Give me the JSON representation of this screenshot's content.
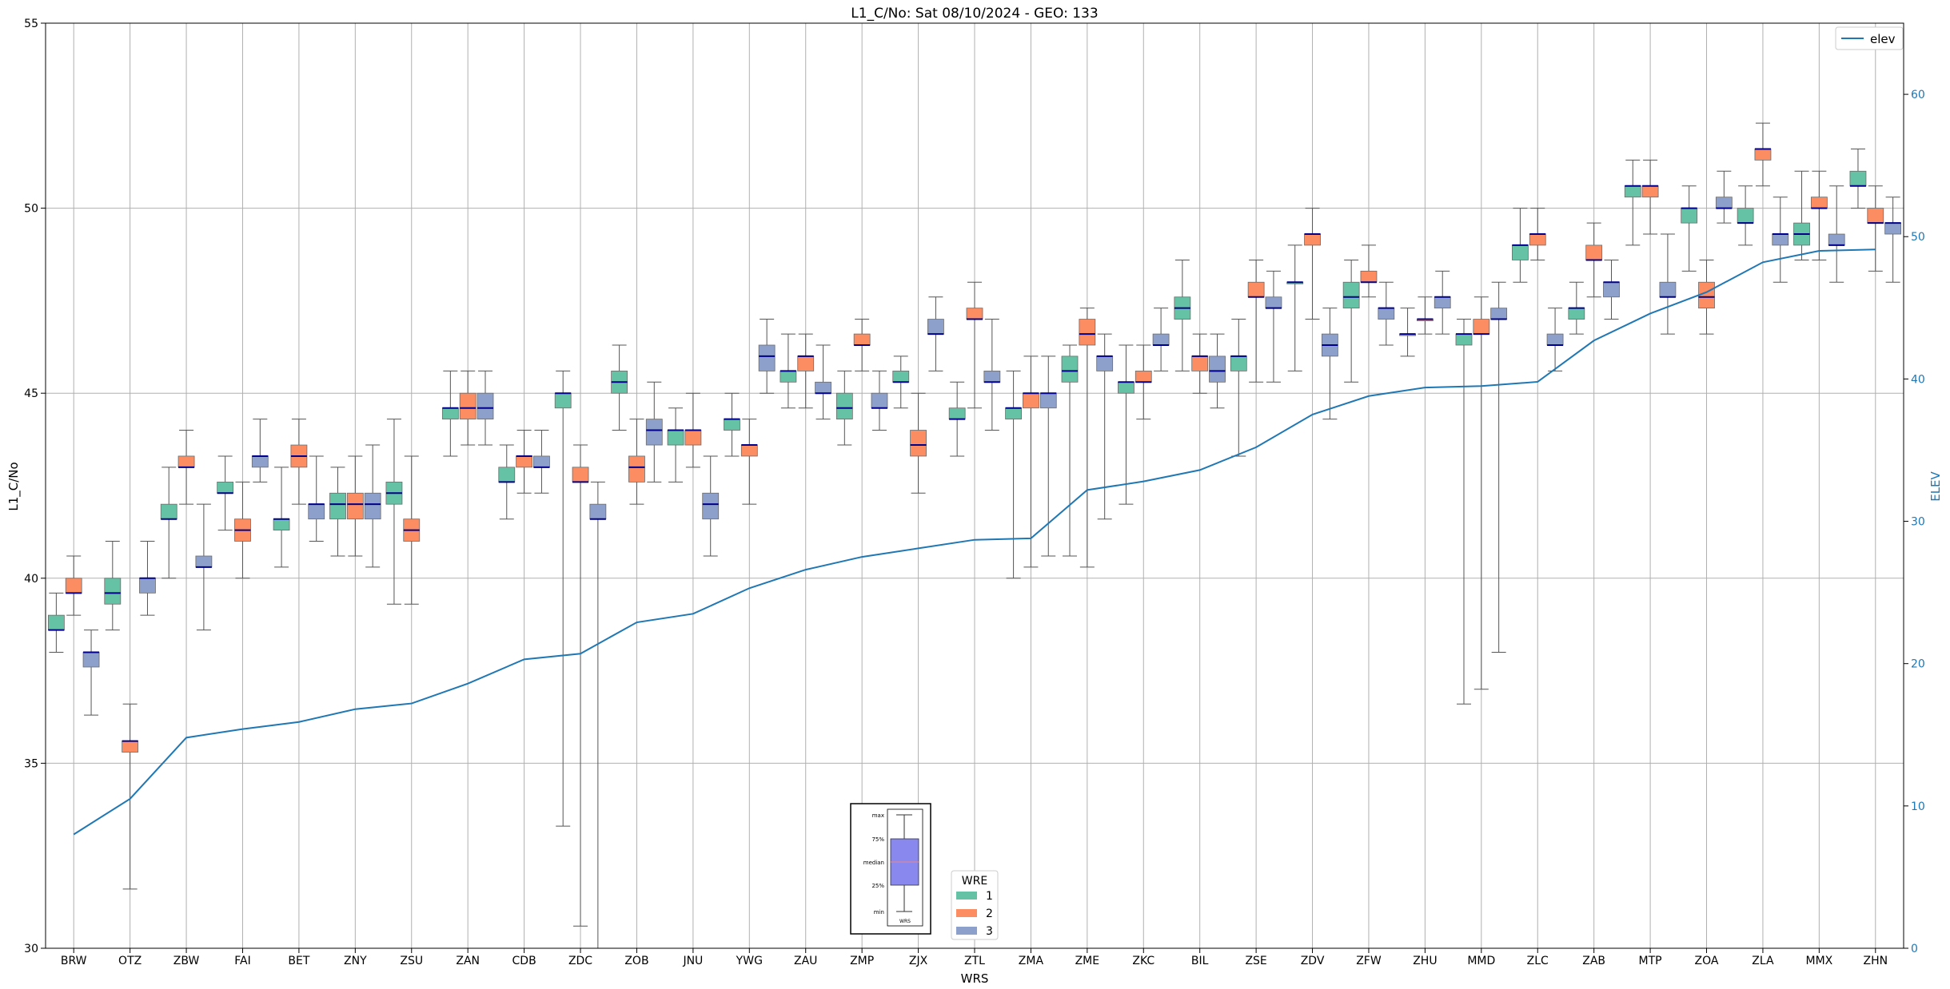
{
  "colors": {
    "wre1": "#66c2a5",
    "wre2": "#fc8d62",
    "wre3": "#8da0cb",
    "median": "#00008b",
    "elev": "#1f77b4",
    "whisker": "#555555"
  },
  "chart_data": {
    "type": "box",
    "title": "L1_C/No: Sat 08/10/2024 - GEO: 133",
    "xlabel": "WRS",
    "ylabel": "L1_C/No",
    "y2label": "ELEV",
    "ylim": [
      30,
      55
    ],
    "y2lim": [
      0,
      65
    ],
    "yticks": [
      30,
      35,
      40,
      45,
      50,
      55
    ],
    "y2ticks": [
      0,
      10,
      20,
      30,
      40,
      50,
      60
    ],
    "grid": true,
    "categories": [
      "BRW",
      "OTZ",
      "ZBW",
      "FAI",
      "BET",
      "ZNY",
      "ZSU",
      "ZAN",
      "CDB",
      "ZDC",
      "ZOB",
      "JNU",
      "YWG",
      "ZAU",
      "ZMP",
      "ZJX",
      "ZTL",
      "ZMA",
      "ZME",
      "ZKC",
      "BIL",
      "ZSE",
      "ZDV",
      "ZFW",
      "ZHU",
      "MMD",
      "ZLC",
      "ZAB",
      "MTP",
      "ZOA",
      "ZLA",
      "MMX",
      "ZHN"
    ],
    "legend_line": {
      "label": "elev",
      "position": "top-right"
    },
    "legend_boxes": {
      "title": "WRE",
      "position": "bottom-center",
      "entries": [
        "1",
        "2",
        "3"
      ]
    },
    "box_key": {
      "labels": [
        "max",
        "75%",
        "median",
        "25%",
        "min"
      ],
      "xlabel": "WRS"
    },
    "elev": [
      8,
      10.5,
      14.8,
      15.4,
      15.9,
      16.8,
      17.2,
      18.6,
      20.3,
      20.7,
      22.9,
      23.5,
      25.3,
      26.6,
      27.5,
      28.1,
      28.7,
      28.8,
      32.2,
      32.8,
      33.6,
      35.2,
      37.5,
      38.8,
      39.4,
      39.5,
      39.8,
      42.7,
      44.6,
      46.1,
      48.2,
      49.0,
      49.1
    ],
    "series": [
      {
        "name": "1",
        "boxes": [
          {
            "min": 38,
            "q1": 38.6,
            "med": 38.6,
            "q3": 39,
            "max": 39.6
          },
          {
            "min": 38.6,
            "q1": 39.3,
            "med": 39.6,
            "q3": 40,
            "max": 41
          },
          {
            "min": 40,
            "q1": 41.6,
            "med": 41.6,
            "q3": 42,
            "max": 43
          },
          {
            "min": 41.3,
            "q1": 42.3,
            "med": 42.3,
            "q3": 42.6,
            "max": 43.3
          },
          {
            "min": 40.3,
            "q1": 41.3,
            "med": 41.6,
            "q3": 41.6,
            "max": 43
          },
          {
            "min": 40.6,
            "q1": 41.6,
            "med": 42,
            "q3": 42.3,
            "max": 43
          },
          {
            "min": 39.3,
            "q1": 42,
            "med": 42.3,
            "q3": 42.6,
            "max": 44.3
          },
          {
            "min": 43.3,
            "q1": 44.3,
            "med": 44.6,
            "q3": 44.6,
            "max": 45.6
          },
          {
            "min": 41.6,
            "q1": 42.6,
            "med": 42.6,
            "q3": 43,
            "max": 43.6
          },
          {
            "min": 33.3,
            "q1": 44.6,
            "med": 45,
            "q3": 45,
            "max": 45.6
          },
          {
            "min": 44,
            "q1": 45,
            "med": 45.3,
            "q3": 45.6,
            "max": 46.3
          },
          {
            "min": 42.6,
            "q1": 43.6,
            "med": 44,
            "q3": 44,
            "max": 44.6
          },
          {
            "min": 43.3,
            "q1": 44,
            "med": 44.3,
            "q3": 44.3,
            "max": 45
          },
          {
            "min": 44.6,
            "q1": 45.3,
            "med": 45.6,
            "q3": 45.6,
            "max": 46.6
          },
          {
            "min": 43.6,
            "q1": 44.3,
            "med": 44.6,
            "q3": 45,
            "max": 45.6
          },
          {
            "min": 44.6,
            "q1": 45.3,
            "med": 45.3,
            "q3": 45.6,
            "max": 46
          },
          {
            "min": 43.3,
            "q1": 44.3,
            "med": 44.3,
            "q3": 44.6,
            "max": 45.3
          },
          {
            "min": 40,
            "q1": 44.3,
            "med": 44.6,
            "q3": 44.6,
            "max": 45.6
          },
          {
            "min": 40.6,
            "q1": 45.3,
            "med": 45.6,
            "q3": 46,
            "max": 46.3
          },
          {
            "min": 42,
            "q1": 45,
            "med": 45.3,
            "q3": 45.3,
            "max": 46.3
          },
          {
            "min": 45.6,
            "q1": 47,
            "med": 47.3,
            "q3": 47.6,
            "max": 48.6
          },
          {
            "min": 43.3,
            "q1": 45.6,
            "med": 46,
            "q3": 46,
            "max": 47
          },
          {
            "min": 45.6,
            "q1": 48,
            "med": 48,
            "q3": 48,
            "max": 49
          },
          {
            "min": 45.3,
            "q1": 47.3,
            "med": 47.6,
            "q3": 48,
            "max": 48.6
          },
          {
            "min": 46,
            "q1": 46.6,
            "med": 46.6,
            "q3": 46.6,
            "max": 47.3
          },
          {
            "min": 36.6,
            "q1": 46.3,
            "med": 46.6,
            "q3": 46.6,
            "max": 47
          },
          {
            "min": 48,
            "q1": 48.6,
            "med": 49,
            "q3": 49,
            "max": 50
          },
          {
            "min": 46.6,
            "q1": 47,
            "med": 47.3,
            "q3": 47.3,
            "max": 48
          },
          {
            "min": 49,
            "q1": 50.3,
            "med": 50.6,
            "q3": 50.6,
            "max": 51.3
          },
          {
            "min": 48.3,
            "q1": 49.6,
            "med": 50,
            "q3": 50,
            "max": 50.6
          },
          {
            "min": 49,
            "q1": 49.6,
            "med": 49.6,
            "q3": 50,
            "max": 50.6
          },
          {
            "min": 48.6,
            "q1": 49,
            "med": 49.3,
            "q3": 49.6,
            "max": 51
          },
          {
            "min": 50,
            "q1": 50.6,
            "med": 50.6,
            "q3": 51,
            "max": 51.6
          }
        ]
      },
      {
        "name": "2",
        "boxes": [
          {
            "min": 39,
            "q1": 39.6,
            "med": 39.6,
            "q3": 40,
            "max": 40.6
          },
          {
            "min": 31.6,
            "q1": 35.3,
            "med": 35.6,
            "q3": 35.6,
            "max": 36.6
          },
          {
            "min": 42,
            "q1": 43,
            "med": 43,
            "q3": 43.3,
            "max": 44
          },
          {
            "min": 40,
            "q1": 41,
            "med": 41.3,
            "q3": 41.6,
            "max": 42.6
          },
          {
            "min": 42,
            "q1": 43,
            "med": 43.3,
            "q3": 43.6,
            "max": 44.3
          },
          {
            "min": 40.6,
            "q1": 41.6,
            "med": 42,
            "q3": 42.3,
            "max": 43.3
          },
          {
            "min": 39.3,
            "q1": 41,
            "med": 41.3,
            "q3": 41.6,
            "max": 43.3
          },
          {
            "min": 43.6,
            "q1": 44.3,
            "med": 44.6,
            "q3": 45,
            "max": 45.6
          },
          {
            "min": 42.3,
            "q1": 43,
            "med": 43.3,
            "q3": 43.3,
            "max": 44
          },
          {
            "min": 30.6,
            "q1": 42.6,
            "med": 42.6,
            "q3": 43,
            "max": 43.6
          },
          {
            "min": 42,
            "q1": 42.6,
            "med": 43,
            "q3": 43.3,
            "max": 44.3
          },
          {
            "min": 43,
            "q1": 43.6,
            "med": 44,
            "q3": 44,
            "max": 45
          },
          {
            "min": 42,
            "q1": 43.3,
            "med": 43.6,
            "q3": 43.6,
            "max": 44.3
          },
          {
            "min": 44.6,
            "q1": 45.6,
            "med": 46,
            "q3": 46,
            "max": 46.6
          },
          {
            "min": 45.6,
            "q1": 46.3,
            "med": 46.3,
            "q3": 46.6,
            "max": 47
          },
          {
            "min": 42.3,
            "q1": 43.3,
            "med": 43.6,
            "q3": 44,
            "max": 45
          },
          {
            "min": 44.6,
            "q1": 47,
            "med": 47,
            "q3": 47.3,
            "max": 48
          },
          {
            "min": 40.3,
            "q1": 44.6,
            "med": 45,
            "q3": 45,
            "max": 46
          },
          {
            "min": 40.3,
            "q1": 46.3,
            "med": 46.6,
            "q3": 47,
            "max": 47.3
          },
          {
            "min": 44.3,
            "q1": 45.3,
            "med": 45.3,
            "q3": 45.6,
            "max": 46.3
          },
          {
            "min": 45,
            "q1": 45.6,
            "med": 46,
            "q3": 46,
            "max": 46.6
          },
          {
            "min": 45.3,
            "q1": 47.6,
            "med": 47.6,
            "q3": 48,
            "max": 48.6
          },
          {
            "min": 47,
            "q1": 49,
            "med": 49.3,
            "q3": 49.3,
            "max": 50
          },
          {
            "min": 47.6,
            "q1": 48,
            "med": 48,
            "q3": 48.3,
            "max": 49
          },
          {
            "min": 46.6,
            "q1": 47,
            "med": 47,
            "q3": 47,
            "max": 47.6
          },
          {
            "min": 37,
            "q1": 46.6,
            "med": 46.6,
            "q3": 47,
            "max": 47.6
          },
          {
            "min": 48.6,
            "q1": 49,
            "med": 49.3,
            "q3": 49.3,
            "max": 50
          },
          {
            "min": 47.6,
            "q1": 48.6,
            "med": 48.6,
            "q3": 49,
            "max": 49.6
          },
          {
            "min": 49.3,
            "q1": 50.3,
            "med": 50.6,
            "q3": 50.6,
            "max": 51.3
          },
          {
            "min": 46.6,
            "q1": 47.3,
            "med": 47.6,
            "q3": 48,
            "max": 48.6
          },
          {
            "min": 50.6,
            "q1": 51.3,
            "med": 51.6,
            "q3": 51.6,
            "max": 52.3
          },
          {
            "min": 48.6,
            "q1": 50,
            "med": 50,
            "q3": 50.3,
            "max": 51
          },
          {
            "min": 48.3,
            "q1": 49.6,
            "med": 49.6,
            "q3": 50,
            "max": 50.6
          }
        ]
      },
      {
        "name": "3",
        "boxes": [
          {
            "min": 36.3,
            "q1": 37.6,
            "med": 38,
            "q3": 38,
            "max": 38.6
          },
          {
            "min": 39,
            "q1": 39.6,
            "med": 40,
            "q3": 40,
            "max": 41
          },
          {
            "min": 38.6,
            "q1": 40.3,
            "med": 40.3,
            "q3": 40.6,
            "max": 42
          },
          {
            "min": 42.6,
            "q1": 43,
            "med": 43.3,
            "q3": 43.3,
            "max": 44.3
          },
          {
            "min": 41,
            "q1": 41.6,
            "med": 42,
            "q3": 42,
            "max": 43.3
          },
          {
            "min": 40.3,
            "q1": 41.6,
            "med": 42,
            "q3": 42.3,
            "max": 43.6
          },
          {
            "min": null
          },
          {
            "min": 43.6,
            "q1": 44.3,
            "med": 44.6,
            "q3": 45,
            "max": 45.6
          },
          {
            "min": 42.3,
            "q1": 43,
            "med": 43,
            "q3": 43.3,
            "max": 44
          },
          {
            "min": 29.6,
            "q1": 41.6,
            "med": 41.6,
            "q3": 42,
            "max": 42.6
          },
          {
            "min": 42.6,
            "q1": 43.6,
            "med": 44,
            "q3": 44.3,
            "max": 45.3
          },
          {
            "min": 40.6,
            "q1": 41.6,
            "med": 42,
            "q3": 42.3,
            "max": 43.3
          },
          {
            "min": 45,
            "q1": 45.6,
            "med": 46,
            "q3": 46.3,
            "max": 47
          },
          {
            "min": 44.3,
            "q1": 45,
            "med": 45,
            "q3": 45.3,
            "max": 46.3
          },
          {
            "min": 44,
            "q1": 44.6,
            "med": 44.6,
            "q3": 45,
            "max": 45.6
          },
          {
            "min": 45.6,
            "q1": 46.6,
            "med": 46.6,
            "q3": 47,
            "max": 47.6
          },
          {
            "min": 44,
            "q1": 45.3,
            "med": 45.3,
            "q3": 45.6,
            "max": 47
          },
          {
            "min": 40.6,
            "q1": 44.6,
            "med": 45,
            "q3": 45,
            "max": 46
          },
          {
            "min": 41.6,
            "q1": 45.6,
            "med": 46,
            "q3": 46,
            "max": 46.6
          },
          {
            "min": 45.6,
            "q1": 46.3,
            "med": 46.3,
            "q3": 46.6,
            "max": 47.3
          },
          {
            "min": 44.6,
            "q1": 45.3,
            "med": 45.6,
            "q3": 46,
            "max": 46.6
          },
          {
            "min": 45.3,
            "q1": 47.3,
            "med": 47.3,
            "q3": 47.6,
            "max": 48.3
          },
          {
            "min": 44.3,
            "q1": 46,
            "med": 46.3,
            "q3": 46.6,
            "max": 47.3
          },
          {
            "min": 46.3,
            "q1": 47,
            "med": 47.3,
            "q3": 47.3,
            "max": 48
          },
          {
            "min": 46.6,
            "q1": 47.3,
            "med": 47.6,
            "q3": 47.6,
            "max": 48.3
          },
          {
            "min": 38,
            "q1": 47,
            "med": 47,
            "q3": 47.3,
            "max": 48
          },
          {
            "min": 45.6,
            "q1": 46.3,
            "med": 46.3,
            "q3": 46.6,
            "max": 47.3
          },
          {
            "min": 47,
            "q1": 47.6,
            "med": 48,
            "q3": 48,
            "max": 48.6
          },
          {
            "min": 46.6,
            "q1": 47.6,
            "med": 47.6,
            "q3": 48,
            "max": 49.3
          },
          {
            "min": 49.6,
            "q1": 50,
            "med": 50,
            "q3": 50.3,
            "max": 51
          },
          {
            "min": 48,
            "q1": 49,
            "med": 49.3,
            "q3": 49.3,
            "max": 50.3
          },
          {
            "min": 48,
            "q1": 49,
            "med": 49,
            "q3": 49.3,
            "max": 50.6
          },
          {
            "min": 48,
            "q1": 49.3,
            "med": 49.6,
            "q3": 49.6,
            "max": 50.3
          }
        ]
      }
    ]
  }
}
